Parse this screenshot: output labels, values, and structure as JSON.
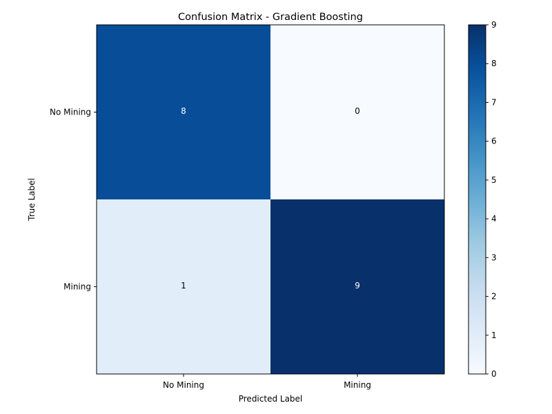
{
  "chart_data": {
    "type": "heatmap",
    "title": "Confusion Matrix - Gradient Boosting",
    "xlabel": "Predicted Label",
    "ylabel": "True Label",
    "x_categories": [
      "No Mining",
      "Mining"
    ],
    "y_categories": [
      "No Mining",
      "Mining"
    ],
    "matrix": [
      [
        8,
        0
      ],
      [
        1,
        9
      ]
    ],
    "colormap": "Blues",
    "color_range": [
      0,
      9
    ],
    "colorbar_ticks": [
      0,
      1,
      2,
      3,
      4,
      5,
      6,
      7,
      8,
      9
    ],
    "colorbar_position": "right",
    "grid": false,
    "text_color_dark_cell": "#ffffff",
    "text_color_light_cell": "#000000"
  }
}
